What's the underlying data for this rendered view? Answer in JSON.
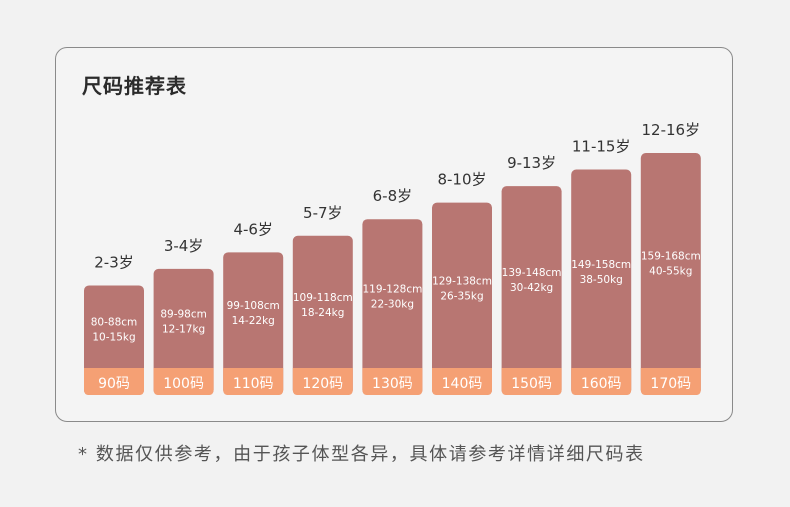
{
  "title": "尺码推荐表",
  "footnote": "* 数据仅供参考，由于孩子体型各异，具体请参考详情详细尺码表",
  "colors": {
    "bar": "#b87672",
    "label_band": "#f5a074",
    "bar_text": "#ffffff",
    "age_text": "#333333"
  },
  "chart_data": {
    "type": "bar",
    "title": "尺码推荐表",
    "categories": [
      "90码",
      "100码",
      "110码",
      "120码",
      "130码",
      "140码",
      "150码",
      "160码",
      "170码"
    ],
    "ages": [
      "2-3岁",
      "3-4岁",
      "4-6岁",
      "5-7岁",
      "6-8岁",
      "8-10岁",
      "9-13岁",
      "11-15岁",
      "12-16岁"
    ],
    "heights": [
      "80-88cm",
      "89-98cm",
      "99-108cm",
      "109-118cm",
      "119-128cm",
      "129-138cm",
      "139-148cm",
      "149-158cm",
      "159-168cm"
    ],
    "weights": [
      "10-15kg",
      "12-17kg",
      "14-22kg",
      "18-24kg",
      "22-30kg",
      "26-35kg",
      "30-42kg",
      "38-50kg",
      "40-55kg"
    ],
    "values": [
      90,
      100,
      110,
      120,
      130,
      140,
      150,
      160,
      170
    ]
  }
}
